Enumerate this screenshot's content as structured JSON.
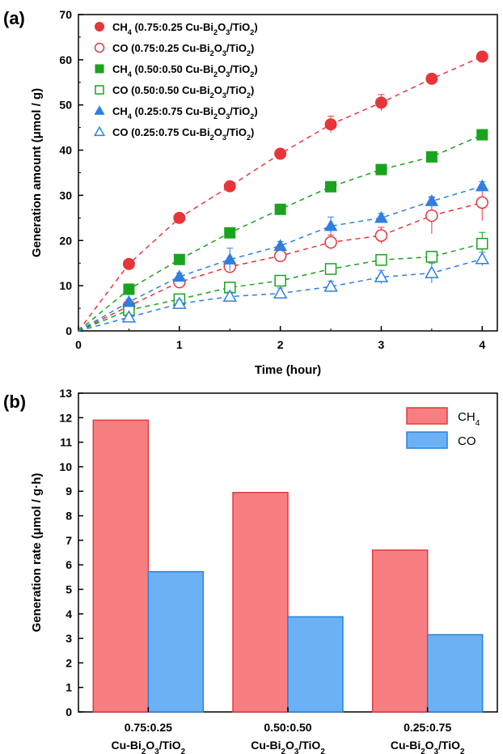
{
  "panel_labels": [
    "(a)",
    "(b)"
  ],
  "chart_data": [
    {
      "type": "scatter",
      "panel": "(a)",
      "xlabel": "Time (hour)",
      "ylabel": "Generation amount (μmol / g)",
      "xlim": [
        0,
        4.15
      ],
      "ylim": [
        0,
        70
      ],
      "x_ticks": [
        0,
        1,
        2,
        3,
        4
      ],
      "y_ticks": [
        0,
        10,
        20,
        30,
        40,
        50,
        60,
        70
      ],
      "x": [
        0,
        0.5,
        1,
        1.5,
        2,
        2.5,
        3,
        3.5,
        4
      ],
      "series": [
        {
          "name": "CH4 (0.75:0.25 Cu-Bi2O3/TiO2)",
          "legend_parts": [
            "CH",
            "4",
            " (0.75:0.25 Cu-Bi",
            "2",
            "O",
            "3",
            "/TiO",
            "2",
            ")"
          ],
          "marker": "circle",
          "filled": true,
          "color": "#e8353a",
          "values": [
            0,
            14.8,
            25.0,
            32.0,
            39.2,
            45.7,
            50.5,
            55.8,
            60.7
          ],
          "errors": [
            0,
            0.8,
            0.8,
            0.8,
            1.0,
            1.8,
            1.8,
            0.8,
            0.8
          ]
        },
        {
          "name": "CO (0.75:0.25 Cu-Bi2O3/TiO2)",
          "legend_parts": [
            "CO (0.75:0.25 Cu-Bi",
            "2",
            "O",
            "3",
            "/TiO",
            "2",
            ")"
          ],
          "marker": "circle",
          "filled": false,
          "color": "#e8353a",
          "values": [
            0,
            5.5,
            10.8,
            14.2,
            16.6,
            19.6,
            21.1,
            25.5,
            28.4
          ],
          "errors": [
            0,
            0.8,
            0.8,
            1.0,
            1.0,
            1.6,
            1.8,
            4.0,
            4.0
          ]
        },
        {
          "name": "CH4 (0.50:0.50 Cu-Bi2O3/TiO2)",
          "legend_parts": [
            "CH",
            "4",
            " (0.50:0.50 Cu-Bi",
            "2",
            "O",
            "3",
            "/TiO",
            "2",
            ")"
          ],
          "marker": "square",
          "filled": true,
          "color": "#1aa31e",
          "values": [
            0,
            9.2,
            15.8,
            21.7,
            26.9,
            31.9,
            35.7,
            38.5,
            43.4
          ],
          "errors": [
            0,
            1.2,
            0.8,
            0.8,
            0.8,
            0.8,
            0.8,
            0.8,
            0.8
          ]
        },
        {
          "name": "CO (0.50:0.50 Cu-Bi2O3/TiO2)",
          "legend_parts": [
            "CO (0.50:0.50 Cu-Bi",
            "2",
            "O",
            "3",
            "/TiO",
            "2",
            ")"
          ],
          "marker": "square",
          "filled": false,
          "color": "#1aa31e",
          "values": [
            0,
            4.6,
            7.0,
            9.6,
            11.1,
            13.7,
            15.7,
            16.4,
            19.3
          ],
          "errors": [
            0,
            0.6,
            0.6,
            0.8,
            1.0,
            1.0,
            1.0,
            1.2,
            2.5
          ]
        },
        {
          "name": "CH4 (0.25:0.75 Cu-Bi2O3/TiO2)",
          "legend_parts": [
            "CH",
            "4",
            " (0.25:0.75 Cu-Bi",
            "2",
            "O",
            "3",
            "/TiO",
            "2",
            ")"
          ],
          "marker": "triangle",
          "filled": true,
          "color": "#2f7fe0",
          "values": [
            0,
            6.4,
            12.0,
            15.8,
            18.8,
            23.2,
            25.0,
            28.7,
            32.0
          ],
          "errors": [
            0,
            0.6,
            0.8,
            2.5,
            1.0,
            2.0,
            1.0,
            1.0,
            1.0
          ]
        },
        {
          "name": "CO (0.25:0.75 Cu-Bi2O3/TiO2)",
          "legend_parts": [
            "CO (0.25:0.75 Cu-Bi",
            "2",
            "O",
            "3",
            "/TiO",
            "2",
            ")"
          ],
          "marker": "triangle",
          "filled": false,
          "color": "#2f7fe0",
          "values": [
            0,
            3.0,
            6.0,
            7.6,
            8.3,
            9.8,
            11.9,
            12.8,
            15.9
          ],
          "errors": [
            0,
            0.6,
            0.8,
            1.0,
            1.2,
            1.2,
            1.5,
            2.2,
            1.5
          ]
        }
      ],
      "legend_position": "top-left"
    },
    {
      "type": "bar",
      "panel": "(b)",
      "ylabel": "Generation rate (μmol / g·h)",
      "ylim": [
        0,
        13
      ],
      "y_ticks": [
        0,
        1,
        2,
        3,
        4,
        5,
        6,
        7,
        8,
        9,
        10,
        11,
        12,
        13
      ],
      "categories": [
        {
          "line1": "0.75:0.25",
          "line2_parts": [
            "Cu-Bi",
            "2",
            "O",
            "3",
            "/TiO",
            "2"
          ]
        },
        {
          "line1": "0.50:0.50",
          "line2_parts": [
            "Cu-Bi",
            "2",
            "O",
            "3",
            "/TiO",
            "2"
          ]
        },
        {
          "line1": "0.25:0.75",
          "line2_parts": [
            "Cu-Bi",
            "2",
            "O",
            "3",
            "/TiO",
            "2"
          ]
        }
      ],
      "series": [
        {
          "name": "CH4",
          "legend_parts": [
            "CH",
            "4"
          ],
          "color": "#f77f82",
          "edge": "#e23a3f",
          "values": [
            11.9,
            8.95,
            6.6
          ]
        },
        {
          "name": "CO",
          "legend_parts": [
            "CO"
          ],
          "color": "#6db1f5",
          "edge": "#2a82d6",
          "values": [
            5.72,
            3.88,
            3.15
          ]
        }
      ],
      "legend_position": "top-right"
    }
  ]
}
